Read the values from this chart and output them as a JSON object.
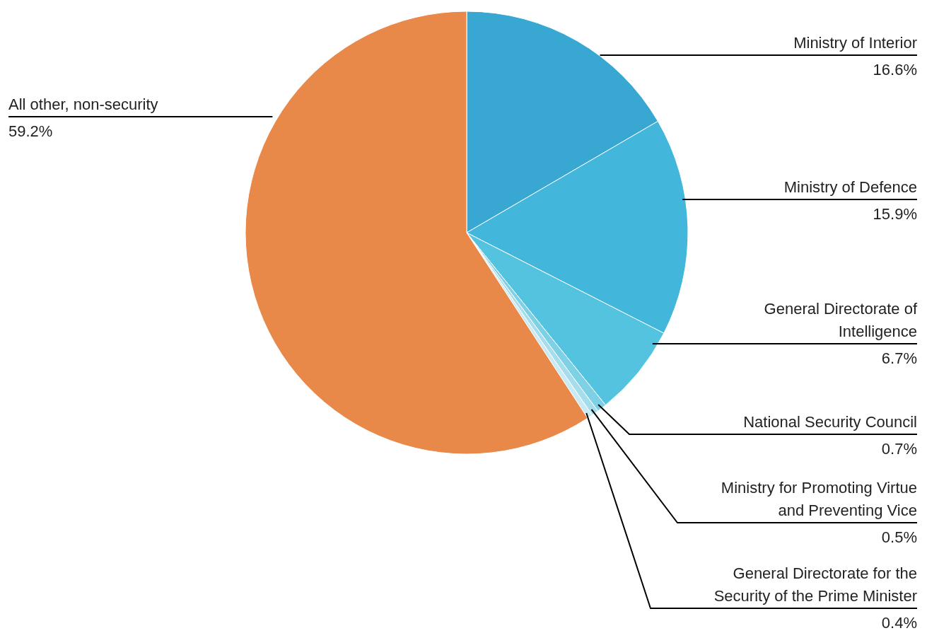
{
  "chart_data": {
    "type": "pie",
    "categories": [
      "Ministry of Interior",
      "Ministry of Defence",
      "General Directorate of Intelligence",
      "National Security Council",
      "Ministry for Promoting Virtue and Preventing Vice",
      "General Directorate for the Security of the Prime Minister",
      "All other, non-security"
    ],
    "values": [
      16.6,
      15.9,
      6.7,
      0.7,
      0.5,
      0.4,
      59.2
    ],
    "value_labels": [
      "16.6%",
      "15.9%",
      "6.7%",
      "0.7%",
      "0.5%",
      "0.4%",
      "59.2%"
    ],
    "colors": [
      "#38a8d3",
      "#43b7db",
      "#53c3df",
      "#7ed0e5",
      "#a6ddec",
      "#c8eaf4",
      "#e8894a"
    ]
  }
}
